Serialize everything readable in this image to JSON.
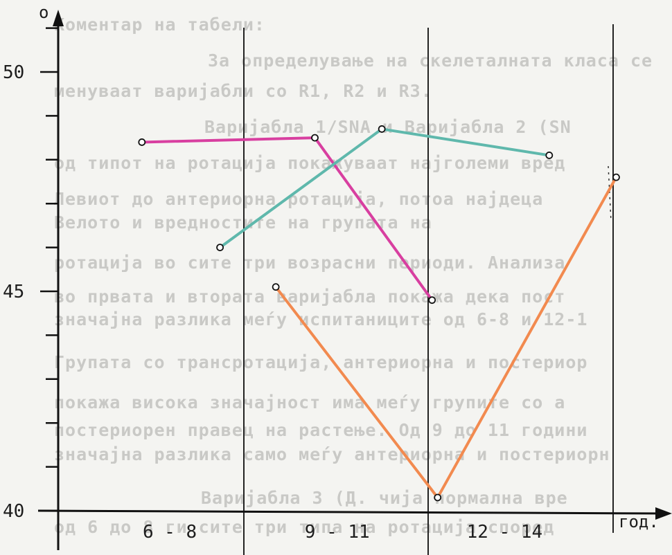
{
  "chart_data": {
    "type": "line",
    "xlabel": "год.",
    "ylabel": "o",
    "categories": [
      "6 - 8",
      "9 - 11",
      "12 - 14"
    ],
    "ylim": [
      40,
      51.5
    ],
    "yticks": [
      40,
      45,
      50
    ],
    "grid": false,
    "series": [
      {
        "color": "#d83fa0",
        "x": [
          6.5,
          9.6,
          11.7
        ],
        "values": [
          48.4,
          48.5,
          44.8
        ]
      },
      {
        "color": "#5fb8ac",
        "x": [
          7.9,
          10.8,
          13.8
        ],
        "values": [
          46.0,
          48.7,
          48.1
        ]
      },
      {
        "color": "#f28a4f",
        "x": [
          8.9,
          11.8,
          15.0
        ],
        "values": [
          45.1,
          40.3,
          47.6
        ]
      }
    ]
  },
  "bleed_through_text": [
    "Коментар на табели:",
    "За определување на скелеталната класа се",
    "менуваат варијабли со R1, R2 и R3.",
    "Варијабла 1/SNA и Варијабла 2 (SN",
    "од типот на ротација покажуваат најголеми вред",
    "Левиот до антериорна ротација, потоа најдеца",
    "Велото и вредностите на групата на",
    "ротација во сите три возрасни периоди. Анализа",
    "во првата и втората варијабла покажа дека пост",
    "значајна разлика меѓу испитаниците од 6-8 и 12-1",
    "Групата со трансротација, антериорна и постериор",
    "покажа висока значајност има меѓу групите со а",
    "постериорен правец на растење. Од 9 до 11 години",
    "значајна разлика само меѓу антериорна и постериорн",
    "Варијабла 3 (Д. чија нормална вре",
    "од 6 до 8 ги сите три типа на ротација според"
  ]
}
